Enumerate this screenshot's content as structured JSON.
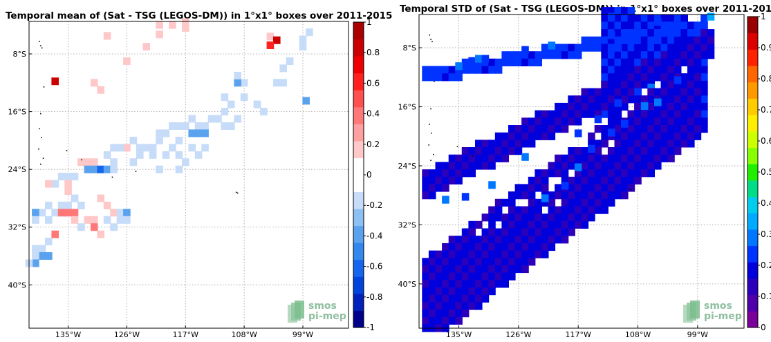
{
  "watermark": {
    "line1": "smos",
    "line2": "pi-mep"
  },
  "chart_data": [
    {
      "type": "heatmap",
      "title": "Temporal mean of (Sat - TSG (LEGOS-DM)) in 1°x1° boxes over 2011-2015",
      "xlabel": "",
      "ylabel": "",
      "xlim": [
        -141,
        -92
      ],
      "ylim": [
        -46,
        -3.5
      ],
      "x_ticks": [
        -135,
        -126,
        -117,
        -108,
        -99
      ],
      "x_tick_labels": [
        "135°W",
        "126°W",
        "117°W",
        "108°W",
        "99°W"
      ],
      "y_ticks": [
        -8,
        -16,
        -24,
        -32,
        -40
      ],
      "y_tick_labels": [
        "8°S",
        "16°S",
        "24°S",
        "32°S",
        "40°S"
      ],
      "grid": true,
      "colorbar": {
        "range": [
          -1,
          1
        ],
        "tick_labels": [
          "1",
          "0.8",
          "0.6",
          "0.4",
          "0.2",
          "0",
          "-0.2",
          "-0.4",
          "-0.6",
          "-0.8",
          "-1"
        ],
        "colors": [
          "#00008b",
          "#0022bb",
          "#0044dd",
          "#1565ee",
          "#3388ee",
          "#5aa2ee",
          "#8dc0f2",
          "#c6dcf8",
          "#ffffff",
          "#ffffff",
          "#ffc8c8",
          "#ffa0a0",
          "#ff7878",
          "#ff5050",
          "#ff2020",
          "#ee0000",
          "#cc0000",
          "#aa0000"
        ]
      },
      "land_dots": [
        [
          -139.5,
          -6.2
        ],
        [
          -139.3,
          -6.8
        ],
        [
          -139.1,
          -7.1
        ],
        [
          -138.8,
          -12.5
        ],
        [
          -139.3,
          -16.2
        ],
        [
          -139.5,
          -18.3
        ],
        [
          -139.2,
          -19.5
        ],
        [
          -139.6,
          -21.1
        ],
        [
          -138.9,
          -22.4
        ],
        [
          -139.3,
          -23.2
        ],
        [
          -135.3,
          -21.3
        ],
        [
          -133.0,
          -22.6
        ],
        [
          -128.3,
          -25.0
        ],
        [
          -124.7,
          -24.2
        ],
        [
          -109.3,
          -27.1
        ],
        [
          -109.1,
          -27.2
        ]
      ],
      "cells": [
        [
          -121,
          -4,
          0.2
        ],
        [
          -119,
          -4,
          0.2
        ],
        [
          -117,
          -3.6,
          0.2
        ],
        [
          -117,
          -4.4,
          0.2
        ],
        [
          -129,
          -5.5,
          0.2
        ],
        [
          -121,
          -5.3,
          0.2
        ],
        [
          -104,
          -5.6,
          0.2
        ],
        [
          -103,
          -6.1,
          0.8
        ],
        [
          -104,
          -6.8,
          0.6
        ],
        [
          -98,
          -5,
          -0.2
        ],
        [
          -99,
          -6,
          -0.2
        ],
        [
          -99,
          -7,
          -0.2
        ],
        [
          -123,
          -7,
          0.2
        ],
        [
          -126,
          -9,
          0.2
        ],
        [
          -131,
          -12,
          0.2
        ],
        [
          -137,
          -11.8,
          0.8
        ],
        [
          -130,
          -13,
          0.2
        ],
        [
          -101,
          -9,
          -0.2
        ],
        [
          -102,
          -10,
          -0.2
        ],
        [
          -102,
          -12,
          -0.2
        ],
        [
          -103,
          -12,
          -0.2
        ],
        [
          -108,
          -12,
          -0.2
        ],
        [
          -109,
          -12,
          -0.4
        ],
        [
          -109,
          -11,
          -0.2
        ],
        [
          -108,
          -14,
          -0.2
        ],
        [
          -111,
          -14,
          -0.2
        ],
        [
          -110,
          -15,
          -0.2
        ],
        [
          -111,
          -16,
          -0.2
        ],
        [
          -106,
          -15,
          -0.2
        ],
        [
          -105,
          -16,
          -0.2
        ],
        [
          -98.5,
          -14.5,
          -0.4
        ],
        [
          -109,
          -17,
          -0.2
        ],
        [
          -112,
          -17,
          -0.2
        ],
        [
          -113,
          -17,
          -0.2
        ],
        [
          -114,
          -18,
          -0.2
        ],
        [
          -115,
          -18,
          -0.2
        ],
        [
          -116,
          -17,
          -0.2
        ],
        [
          -117,
          -18,
          -0.2
        ],
        [
          -118,
          -18,
          -0.2
        ],
        [
          -119,
          -18,
          -0.2
        ],
        [
          -110,
          -18,
          -0.2
        ],
        [
          -111,
          -18,
          -0.2
        ],
        [
          -114,
          -19,
          -0.4
        ],
        [
          -115,
          -19,
          -0.4
        ],
        [
          -116,
          -19,
          -0.4
        ],
        [
          -118,
          -20,
          -0.2
        ],
        [
          -120,
          -19,
          -0.2
        ],
        [
          -121,
          -20,
          -0.2
        ],
        [
          -122,
          -21,
          -0.2
        ],
        [
          -123,
          -21,
          -0.2
        ],
        [
          -124,
          -21,
          -0.2
        ],
        [
          -125,
          -20,
          -0.2
        ],
        [
          -124,
          -22,
          -0.2
        ],
        [
          -125,
          -23,
          -0.2
        ],
        [
          -122,
          -22,
          -0.2
        ],
        [
          -120,
          -22,
          -0.2
        ],
        [
          -118,
          -22,
          -0.2
        ],
        [
          -116,
          -21,
          -0.2
        ],
        [
          -115,
          -22,
          -0.2
        ],
        [
          -114,
          -21,
          -0.2
        ],
        [
          -119,
          -21,
          -0.2
        ],
        [
          -121,
          -19,
          -0.2
        ],
        [
          -126,
          -21,
          0.2
        ],
        [
          -127,
          -21,
          -0.2
        ],
        [
          -128,
          -21,
          -0.2
        ],
        [
          -129,
          -22,
          -0.2
        ],
        [
          -128,
          -23,
          -0.2
        ],
        [
          -121,
          -24,
          -0.2
        ],
        [
          -117,
          -23,
          -0.2
        ],
        [
          -118,
          -24,
          -0.2
        ],
        [
          -131,
          -23,
          0.2
        ],
        [
          -131,
          -24,
          0.2
        ],
        [
          -132,
          -23,
          0.2
        ],
        [
          -133,
          -23,
          0.2
        ],
        [
          -132,
          -24,
          -0.4
        ],
        [
          -131,
          -24,
          -0.4
        ],
        [
          -130,
          -24,
          -0.6
        ],
        [
          -129,
          -24,
          -0.4
        ],
        [
          -128,
          -24,
          -0.2
        ],
        [
          -134,
          -25,
          -0.2
        ],
        [
          -135,
          -25,
          -0.2
        ],
        [
          -136,
          -25,
          -0.2
        ],
        [
          -137,
          -26,
          -0.2
        ],
        [
          -138,
          -26,
          0.2
        ],
        [
          -135,
          -26,
          0.2
        ],
        [
          -135,
          -27,
          0.2
        ],
        [
          -134,
          -28,
          -0.2
        ],
        [
          -133,
          -29,
          -0.2
        ],
        [
          -135,
          -29,
          -0.2
        ],
        [
          -136,
          -29,
          -0.2
        ],
        [
          -137,
          -30,
          -0.2
        ],
        [
          -138,
          -29,
          -0.2
        ],
        [
          -139,
          -30,
          -0.2
        ],
        [
          -140,
          -30,
          -0.4
        ],
        [
          -140,
          -31,
          -0.2
        ],
        [
          -138,
          -31,
          -0.2
        ],
        [
          -136,
          -30,
          0.4
        ],
        [
          -135,
          -30,
          0.4
        ],
        [
          -134,
          -30,
          0.4
        ],
        [
          -134,
          -31,
          0.2
        ],
        [
          -131,
          -31,
          0.2
        ],
        [
          -130,
          -28,
          0.2
        ],
        [
          -129,
          -29,
          0.2
        ],
        [
          -128,
          -30,
          0.2
        ],
        [
          -129,
          -31,
          -0.2
        ],
        [
          -127,
          -30,
          -0.2
        ],
        [
          -127,
          -31,
          -0.2
        ],
        [
          -126,
          -30,
          -0.4
        ],
        [
          -126,
          -31,
          -0.2
        ],
        [
          -128,
          -32,
          -0.2
        ],
        [
          -133,
          -32,
          -0.2
        ],
        [
          -132,
          -31,
          0.2
        ],
        [
          -131,
          -32,
          0.4
        ],
        [
          -130,
          -33,
          0.2
        ],
        [
          -137,
          -33,
          0.4
        ],
        [
          -138,
          -34,
          -0.2
        ],
        [
          -139,
          -35,
          -0.2
        ],
        [
          -140,
          -35,
          -0.2
        ],
        [
          -138,
          -36,
          -0.4
        ],
        [
          -139,
          -36,
          -0.4
        ],
        [
          -140,
          -36,
          -0.2
        ],
        [
          -140,
          -37,
          -0.4
        ],
        [
          -141,
          -37,
          -0.2
        ]
      ]
    },
    {
      "type": "heatmap",
      "title": "Temporal STD of (Sat - TSG (LEGOS-DM)) in 1°x1° boxes over 2011-2015",
      "xlabel": "",
      "ylabel": "",
      "xlim": [
        -141,
        -92
      ],
      "ylim": [
        -46,
        -3.5
      ],
      "x_ticks": [
        -135,
        -126,
        -117,
        -108,
        -99
      ],
      "x_tick_labels": [
        "135°W",
        "126°W",
        "117°W",
        "108°W",
        "99°W"
      ],
      "y_ticks": [
        -8,
        -16,
        -24,
        -32,
        -40
      ],
      "y_tick_labels": [
        "8°S",
        "16°S",
        "24°S",
        "32°S",
        "40°S"
      ],
      "grid": true,
      "colorbar": {
        "range": [
          0,
          1
        ],
        "tick_labels": [
          "1",
          "0.9",
          "0.8",
          "0.7",
          "0.6",
          "0.5",
          "0.4",
          "0.3",
          "0.2",
          "0.1",
          "0"
        ],
        "colors": [
          "#7a0099",
          "#5000aa",
          "#2c00bb",
          "#0000dd",
          "#0033ff",
          "#0077ff",
          "#00aaff",
          "#00ccee",
          "#00dd88",
          "#22ee00",
          "#88ff00",
          "#ccff00",
          "#ffee00",
          "#ffcc00",
          "#ff9900",
          "#ff6600",
          "#ff2200",
          "#dd0000",
          "#990000"
        ]
      },
      "land_dots": [
        [
          -139.5,
          -6.2
        ],
        [
          -139.3,
          -6.8
        ],
        [
          -139.1,
          -7.1
        ],
        [
          -138.8,
          -12.5
        ],
        [
          -139.3,
          -16.2
        ],
        [
          -139.5,
          -18.3
        ],
        [
          -139.2,
          -19.5
        ],
        [
          -139.6,
          -21.1
        ],
        [
          -138.9,
          -22.4
        ],
        [
          -139.3,
          -23.2
        ],
        [
          -135.3,
          -21.3
        ],
        [
          -133.0,
          -22.6
        ],
        [
          -109.3,
          -27.1
        ],
        [
          -109.1,
          -27.2
        ]
      ],
      "bands": [
        {
          "lon_start": -113,
          "lon_end": -98,
          "lat_start": -3,
          "lat_end": -4.8,
          "width": 15,
          "value": 0.18,
          "blue_cells": [
            [
              -112,
              -3.8,
              0.22
            ],
            [
              -105,
              -4.5,
              0.25
            ]
          ]
        },
        {
          "lon_start": -140,
          "lon_end": -98,
          "lat_start": -11.5,
          "lat_end": -4.5,
          "width": 2,
          "value": 0.2,
          "blue_cells": [
            [
              -133,
              -9.8,
              0.25
            ],
            [
              -132,
              -9.5,
              0.28
            ],
            [
              -135,
              -10.5,
              0.27
            ],
            [
              -131,
              -9.5,
              0.26
            ],
            [
              -125,
              -8.3,
              0.22
            ],
            [
              -121,
              -7.7,
              0.27
            ],
            [
              -112,
              -6.3,
              0.23
            ]
          ]
        },
        {
          "lon_start": -140,
          "lon_end": -97,
          "lat_start": -25,
          "lat_end": -6,
          "width": 4,
          "value": 0.13,
          "blue_cells": [
            [
              -125,
              -22.8,
              0.3
            ],
            [
              -117,
              -19.6,
              0.25
            ],
            [
              -114,
              -17.7,
              0.22
            ],
            [
              -111,
              -15.5,
              0.24
            ],
            [
              -108,
              -14,
              0.22
            ],
            [
              -106,
              -13.4,
              0.3
            ],
            [
              -104,
              -12.3,
              0.25
            ],
            [
              -97,
              -3.8,
              0.32
            ]
          ]
        },
        {
          "lon_start": -140,
          "lon_end": -99,
          "lat_start": -37,
          "lat_end": -9,
          "width": 12,
          "value": 0.13,
          "blue_cells": [
            [
              -137,
              -28.6,
              0.28
            ],
            [
              -134,
              -28.2,
              0.25
            ],
            [
              -130,
              -26.6,
              0.27
            ],
            [
              -122,
              -28.4,
              0.3
            ],
            [
              -119,
              -26.7,
              0.25
            ],
            [
              -117,
              -24.2,
              0.28
            ],
            [
              -115,
              -21.7,
              0.25
            ],
            [
              -112,
              -19.5,
              0.23
            ],
            [
              -110,
              -18.3,
              0.25
            ],
            [
              -107,
              -15.9,
              0.27
            ],
            [
              -105,
              -15.4,
              0.3
            ],
            [
              -102,
              -12.4,
              0.22
            ]
          ]
        }
      ],
      "holes": [
        [
          -117,
          -21
        ],
        [
          -116,
          -21
        ],
        [
          -114,
          -20
        ],
        [
          -110,
          -17
        ],
        [
          -109,
          -16
        ],
        [
          -107,
          -14
        ],
        [
          -105,
          -13
        ],
        [
          -101,
          -11
        ],
        [
          -121,
          -26
        ],
        [
          -120,
          -26
        ],
        [
          -118,
          -25
        ],
        [
          -113,
          -22
        ],
        [
          -112,
          -21
        ],
        [
          -126,
          -29
        ],
        [
          -125,
          -29
        ],
        [
          -123,
          -28
        ],
        [
          -121,
          -27
        ],
        [
          -128,
          -30
        ],
        [
          -131,
          -32
        ],
        [
          -129,
          -32
        ],
        [
          -134,
          -32
        ],
        [
          -132,
          -33
        ],
        [
          -122,
          -30
        ],
        [
          -120,
          -29
        ]
      ]
    }
  ]
}
